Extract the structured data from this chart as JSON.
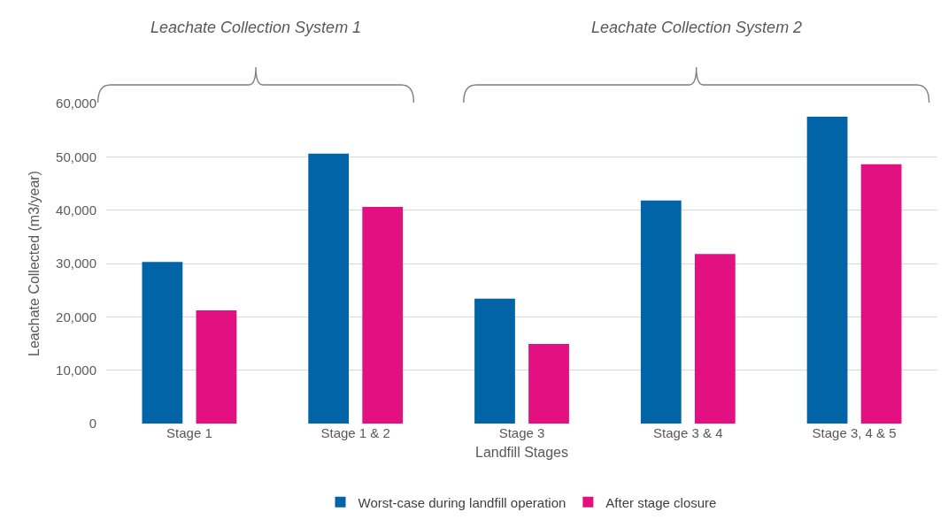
{
  "chart_data": {
    "type": "bar",
    "xlabel": "Landfill Stages",
    "ylabel": "Leachate Collected (m3/year)",
    "categories": [
      "Stage 1",
      "Stage 1 & 2",
      "Stage 3",
      "Stage 3 & 4",
      "Stage 3, 4 & 5"
    ],
    "series": [
      {
        "name": "Worst-case during landfill operation",
        "color": "#0064a6",
        "values": [
          30300,
          50600,
          23400,
          41800,
          57500
        ]
      },
      {
        "name": "After stage closure",
        "color": "#e31081",
        "values": [
          21200,
          40600,
          14900,
          31800,
          48600
        ]
      }
    ],
    "ylim": [
      0,
      60000
    ],
    "yticks": [
      {
        "value": 0,
        "label": "0"
      },
      {
        "value": 10000,
        "label": "10,000"
      },
      {
        "value": 20000,
        "label": "20,000"
      },
      {
        "value": 30000,
        "label": "30,000"
      },
      {
        "value": 40000,
        "label": "40,000"
      },
      {
        "value": 50000,
        "label": "50,000"
      },
      {
        "value": 60000,
        "label": "60,000"
      }
    ],
    "grid": "y",
    "legend": "bottom",
    "annotations": [
      "Leachate Collection System 1",
      "Leachate Collection System 2"
    ]
  }
}
